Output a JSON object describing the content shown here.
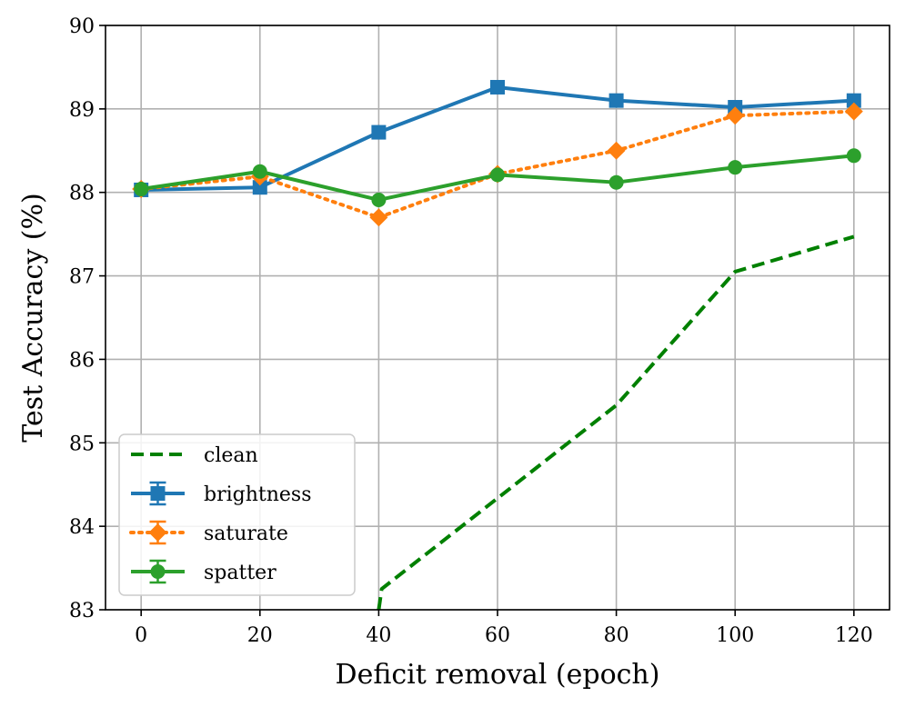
{
  "chart_data": {
    "type": "line",
    "xlabel": "Deficit removal (epoch)",
    "ylabel": "Test Accuracy (%)",
    "xlim": [
      -6,
      126
    ],
    "ylim": [
      83,
      90
    ],
    "xticks": [
      0,
      20,
      40,
      60,
      80,
      100,
      120
    ],
    "yticks": [
      83,
      84,
      85,
      86,
      87,
      88,
      89,
      90
    ],
    "grid": true,
    "legend_position": "lower-left",
    "series": [
      {
        "name": "clean",
        "color": "#008000",
        "linestyle": "dashed",
        "marker": "none",
        "x": [
          40,
          40.5,
          80,
          100,
          120
        ],
        "y": [
          83.0,
          83.25,
          85.45,
          87.05,
          87.47
        ]
      },
      {
        "name": "brightness",
        "color": "#1f77b4",
        "linestyle": "solid",
        "marker": "square",
        "x": [
          0,
          20,
          40,
          60,
          80,
          100,
          120
        ],
        "y": [
          88.03,
          88.06,
          88.72,
          89.26,
          89.1,
          89.02,
          89.1
        ]
      },
      {
        "name": "saturate",
        "color": "#ff7f0e",
        "linestyle": "dotted",
        "marker": "diamond",
        "x": [
          0,
          20,
          40,
          60,
          80,
          100,
          120
        ],
        "y": [
          88.04,
          88.19,
          87.7,
          88.22,
          88.5,
          88.92,
          88.97
        ]
      },
      {
        "name": "spatter",
        "color": "#2ca02c",
        "linestyle": "solid",
        "marker": "circle",
        "x": [
          0,
          20,
          40,
          60,
          80,
          100,
          120
        ],
        "y": [
          88.04,
          88.25,
          87.91,
          88.21,
          88.12,
          88.3,
          88.44
        ]
      }
    ]
  }
}
